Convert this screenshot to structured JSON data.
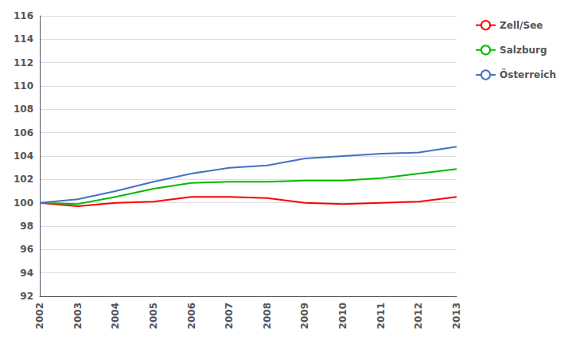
{
  "chart_data": {
    "type": "line",
    "x": [
      2002,
      2003,
      2004,
      2005,
      2006,
      2007,
      2008,
      2009,
      2010,
      2011,
      2012,
      2013
    ],
    "series": [
      {
        "name": "Zell/See",
        "color": "#ff0000",
        "values": [
          100.0,
          99.7,
          100.0,
          100.1,
          100.5,
          100.5,
          100.4,
          100.0,
          99.9,
          100.0,
          100.1,
          100.5
        ]
      },
      {
        "name": "Salzburg",
        "color": "#00bb00",
        "values": [
          100.0,
          99.9,
          100.5,
          101.2,
          101.7,
          101.8,
          101.8,
          101.9,
          101.9,
          102.1,
          102.5,
          102.9
        ]
      },
      {
        "name": "Österreich",
        "color": "#4472c4",
        "values": [
          100.0,
          100.3,
          101.0,
          101.8,
          102.5,
          103.0,
          103.2,
          103.8,
          104.0,
          104.2,
          104.3,
          104.8
        ]
      }
    ],
    "xlim": [
      2002,
      2013
    ],
    "xticks": [
      2002,
      2003,
      2004,
      2005,
      2006,
      2007,
      2008,
      2009,
      2010,
      2011,
      2012,
      2013
    ],
    "ylim": [
      92,
      116
    ],
    "yticks": [
      92,
      94,
      96,
      98,
      100,
      102,
      104,
      106,
      108,
      110,
      112,
      114,
      116
    ],
    "grid": true,
    "legend": "right"
  }
}
